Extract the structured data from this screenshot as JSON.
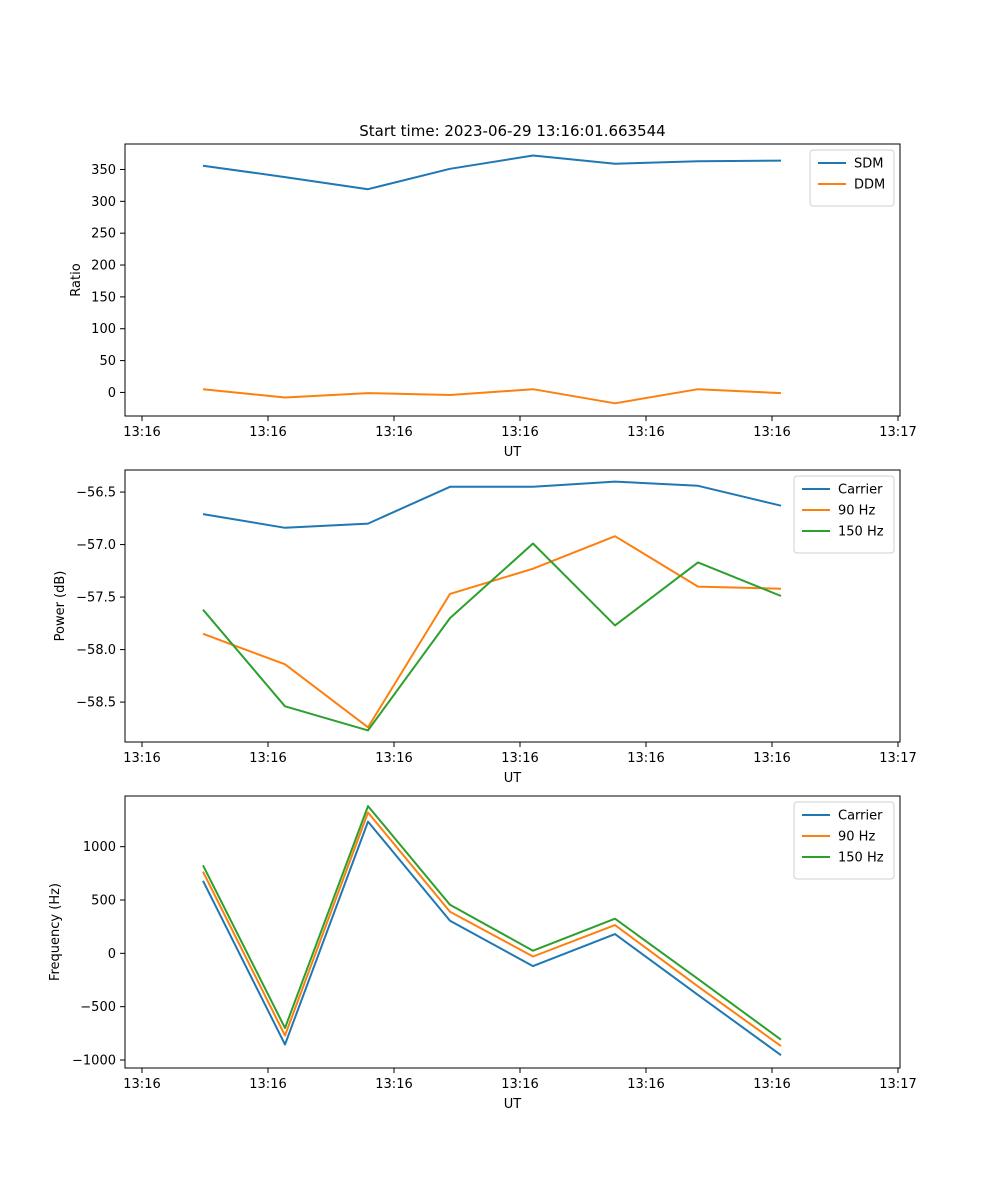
{
  "title": "Start time: 2023-06-29 13:16:01.663544",
  "colors": {
    "c0": "#1f77b4",
    "c1": "#ff7f0e",
    "c2": "#2ca02c"
  },
  "chart_data": [
    {
      "type": "line",
      "xlabel": "UT",
      "ylabel": "Ratio",
      "x_tick_labels": [
        "13:16",
        "13:16",
        "13:16",
        "13:16",
        "13:16",
        "13:16",
        "13:17"
      ],
      "y_ticks": [
        0,
        50,
        100,
        150,
        200,
        250,
        300,
        350
      ],
      "y_tick_labels": [
        "0",
        "50",
        "100",
        "150",
        "200",
        "250",
        "300",
        "350"
      ],
      "ylim": [
        -37,
        390
      ],
      "legend": "top-right",
      "series": [
        {
          "name": "SDM",
          "color": "#1f77b4",
          "values": [
            356,
            338,
            319,
            351,
            372,
            359,
            363,
            364
          ]
        },
        {
          "name": "DDM",
          "color": "#ff7f0e",
          "values": [
            5,
            -8,
            -1,
            -4,
            5,
            -17,
            5,
            -1
          ]
        }
      ]
    },
    {
      "type": "line",
      "xlabel": "UT",
      "ylabel": "Power (dB)",
      "x_tick_labels": [
        "13:16",
        "13:16",
        "13:16",
        "13:16",
        "13:16",
        "13:16",
        "13:17"
      ],
      "y_ticks": [
        -58.5,
        -58.0,
        -57.5,
        -57.0,
        -56.5
      ],
      "y_tick_labels": [
        "−58.5",
        "−58.0",
        "−57.5",
        "−57.0",
        "−56.5"
      ],
      "ylim": [
        -58.88,
        -56.29
      ],
      "legend": "top-right",
      "series": [
        {
          "name": "Carrier",
          "color": "#1f77b4",
          "values": [
            -56.71,
            -56.84,
            -56.8,
            -56.45,
            -56.45,
            -56.4,
            -56.44,
            -56.63
          ]
        },
        {
          "name": "90 Hz",
          "color": "#ff7f0e",
          "values": [
            -57.85,
            -58.14,
            -58.74,
            -57.47,
            -57.23,
            -56.92,
            -57.4,
            -57.42
          ]
        },
        {
          "name": "150 Hz",
          "color": "#2ca02c",
          "values": [
            -57.62,
            -58.54,
            -58.77,
            -57.7,
            -56.99,
            -57.77,
            -57.17,
            -57.49
          ]
        }
      ]
    },
    {
      "type": "line",
      "xlabel": "UT",
      "ylabel": "Frequency (Hz)",
      "x_tick_labels": [
        "13:16",
        "13:16",
        "13:16",
        "13:16",
        "13:16",
        "13:16",
        "13:17"
      ],
      "y_ticks": [
        -1000,
        -500,
        0,
        500,
        1000
      ],
      "y_tick_labels": [
        "−1000",
        "−500",
        "0",
        "500",
        "1000"
      ],
      "ylim": [
        -1075,
        1475
      ],
      "legend": "top-right",
      "series": [
        {
          "name": "Carrier",
          "color": "#1f77b4",
          "values": [
            680,
            -855,
            1235,
            305,
            -120,
            180,
            -390,
            -955
          ]
        },
        {
          "name": "90 Hz",
          "color": "#ff7f0e",
          "values": [
            765,
            -770,
            1320,
            390,
            -30,
            265,
            -310,
            -870
          ]
        },
        {
          "name": "150 Hz",
          "color": "#2ca02c",
          "values": [
            825,
            -700,
            1380,
            455,
            25,
            325,
            -240,
            -810
          ]
        }
      ]
    }
  ]
}
